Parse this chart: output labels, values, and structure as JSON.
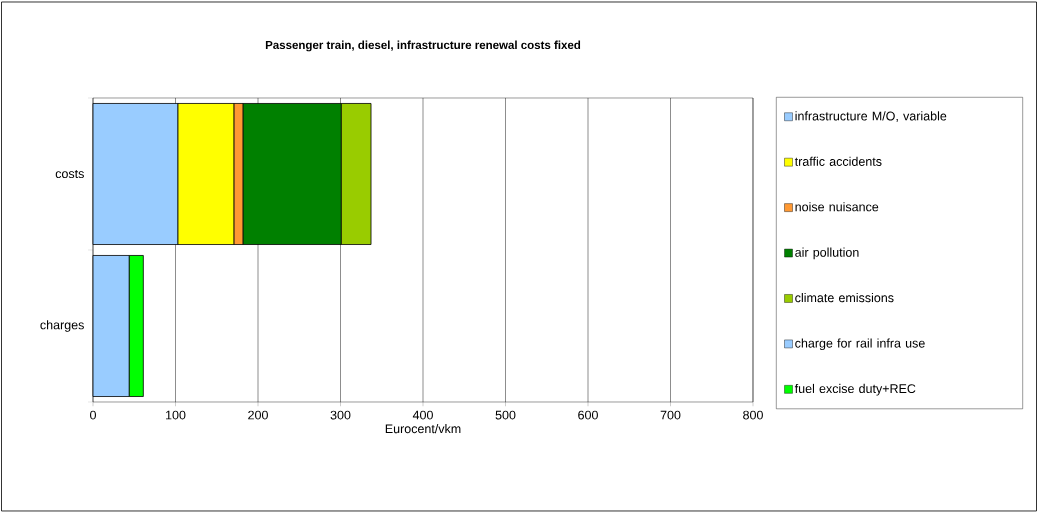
{
  "chart_data": {
    "type": "bar",
    "title": "Passenger train, diesel, infrastructure renewal costs fixed",
    "xlabel": "Eurocent/vkm",
    "categories": [
      "costs",
      "charges"
    ],
    "orientation": "horizontal",
    "stacked": true,
    "series": [
      {
        "name": "infrastructure M/O, variable",
        "color": "#99ccff",
        "values": [
          103,
          null
        ]
      },
      {
        "name": "traffic accidents",
        "color": "#ffff00",
        "values": [
          68,
          null
        ]
      },
      {
        "name": "noise nuisance",
        "color": "#ff9933",
        "values": [
          11,
          null
        ]
      },
      {
        "name": "air pollution",
        "color": "#008000",
        "values": [
          119,
          null
        ]
      },
      {
        "name": "climate emissions",
        "color": "#99cc00",
        "values": [
          36,
          null
        ]
      },
      {
        "name": "charge for rail infra use",
        "color": "#99ccff",
        "values": [
          null,
          44
        ]
      },
      {
        "name": "fuel excise duty+REC",
        "color": "#00ff00",
        "values": [
          null,
          17
        ]
      }
    ],
    "xlim": [
      0,
      800
    ],
    "xticks": [
      0,
      100,
      200,
      300,
      400,
      500,
      600,
      700,
      800
    ],
    "grid": "x",
    "legend": "right"
  }
}
